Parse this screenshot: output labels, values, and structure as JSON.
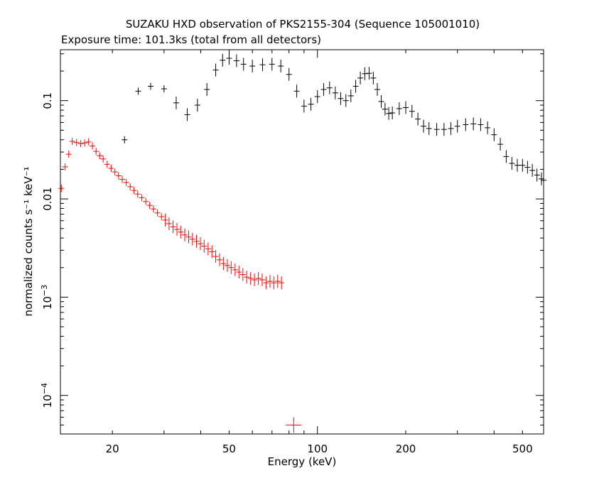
{
  "chart_data": {
    "type": "scatter",
    "title": "SUZAKU HXD observation of PKS2155-304 (Sequence 105001010)",
    "subtitle": "Exposure time: 101.3ks (total from all detectors)",
    "xlabel": "Energy (keV)",
    "ylabel": "normalized counts s⁻¹ keV⁻¹",
    "xscale": "log",
    "yscale": "log",
    "xlim": [
      13.3,
      590
    ],
    "ylim": [
      4.05e-05,
      0.33
    ],
    "grid": false,
    "x_ticks": [
      {
        "value": 20,
        "label": "20"
      },
      {
        "value": 50,
        "label": "50"
      },
      {
        "value": 100,
        "label": "100"
      },
      {
        "value": 200,
        "label": "200"
      },
      {
        "value": 500,
        "label": "500"
      }
    ],
    "y_ticks": [
      {
        "value": 0.0001,
        "base": "10",
        "exp": "−4"
      },
      {
        "value": 0.001,
        "base": "10",
        "exp": "−3"
      },
      {
        "value": 0.01,
        "label": "0.01"
      },
      {
        "value": 0.1,
        "label": "0.1"
      }
    ],
    "series": [
      {
        "color": "#ff0000",
        "points": [
          [
            13.4,
            0.0128
          ],
          [
            13.8,
            0.0212
          ],
          [
            14.2,
            0.0285
          ],
          [
            14.6,
            0.0385
          ],
          [
            15.1,
            0.0375
          ],
          [
            15.6,
            0.0365
          ],
          [
            16.1,
            0.0372
          ],
          [
            16.6,
            0.038
          ],
          [
            17.1,
            0.0345
          ],
          [
            17.6,
            0.0305
          ],
          [
            18.1,
            0.0275
          ],
          [
            18.6,
            0.0255
          ],
          [
            19.2,
            0.0225
          ],
          [
            19.8,
            0.0205
          ],
          [
            20.4,
            0.0188
          ],
          [
            21.0,
            0.0172
          ],
          [
            21.6,
            0.0158
          ],
          [
            22.3,
            0.0147
          ],
          [
            23.0,
            0.0133
          ],
          [
            23.7,
            0.0122
          ],
          [
            24.4,
            0.0112
          ],
          [
            25.2,
            0.0103
          ],
          [
            26.0,
            0.0094
          ],
          [
            26.8,
            0.0086
          ],
          [
            27.6,
            0.0079
          ],
          [
            28.5,
            0.0072
          ],
          [
            29.4,
            0.0066
          ],
          [
            30.3,
            0.0061
          ],
          [
            31.2,
            0.0056
          ],
          [
            32.2,
            0.0052
          ],
          [
            33.2,
            0.0049
          ],
          [
            34.2,
            0.0046
          ],
          [
            35.3,
            0.0043
          ],
          [
            36.4,
            0.0041
          ],
          [
            37.5,
            0.0039
          ],
          [
            38.7,
            0.0037
          ],
          [
            39.9,
            0.0035
          ],
          [
            41.1,
            0.0033
          ],
          [
            42.4,
            0.0031
          ],
          [
            43.7,
            0.0029
          ],
          [
            45.0,
            0.0026
          ],
          [
            46.4,
            0.0024
          ],
          [
            47.8,
            0.0022
          ],
          [
            49.3,
            0.0021
          ],
          [
            50.8,
            0.002
          ],
          [
            52.4,
            0.0019
          ],
          [
            54.0,
            0.0018
          ],
          [
            55.7,
            0.0017
          ],
          [
            57.4,
            0.0016
          ],
          [
            59.2,
            0.00155
          ],
          [
            61.0,
            0.0015
          ],
          [
            62.9,
            0.00155
          ],
          [
            64.8,
            0.0015
          ],
          [
            66.8,
            0.0014
          ],
          [
            68.9,
            0.00145
          ],
          [
            71.0,
            0.0014
          ],
          [
            73.2,
            0.00145
          ],
          [
            75.4,
            0.0014
          ],
          [
            83.0,
            5e-05
          ]
        ]
      },
      {
        "color": "#000000",
        "points": [
          [
            22.0,
            0.04
          ],
          [
            24.5,
            0.125
          ],
          [
            27.0,
            0.14
          ],
          [
            30.0,
            0.132
          ],
          [
            33.0,
            0.095
          ],
          [
            36.0,
            0.072
          ],
          [
            39.0,
            0.09
          ],
          [
            42.0,
            0.13
          ],
          [
            45.0,
            0.205
          ],
          [
            47.5,
            0.258
          ],
          [
            50.0,
            0.27
          ],
          [
            53.0,
            0.255
          ],
          [
            56.0,
            0.235
          ],
          [
            60.0,
            0.225
          ],
          [
            65.0,
            0.232
          ],
          [
            70.0,
            0.235
          ],
          [
            75.0,
            0.225
          ],
          [
            80.0,
            0.185
          ],
          [
            85.0,
            0.125
          ],
          [
            90.0,
            0.088
          ],
          [
            95.0,
            0.092
          ],
          [
            100.0,
            0.11
          ],
          [
            105.0,
            0.13
          ],
          [
            110.0,
            0.135
          ],
          [
            115.0,
            0.12
          ],
          [
            120.0,
            0.105
          ],
          [
            125.0,
            0.1
          ],
          [
            130.0,
            0.112
          ],
          [
            135.0,
            0.14
          ],
          [
            140.0,
            0.17
          ],
          [
            145.0,
            0.188
          ],
          [
            150.0,
            0.19
          ],
          [
            155.0,
            0.17
          ],
          [
            160.0,
            0.13
          ],
          [
            165.0,
            0.098
          ],
          [
            170.0,
            0.082
          ],
          [
            175.0,
            0.074
          ],
          [
            180.0,
            0.075
          ],
          [
            190.0,
            0.083
          ],
          [
            200.0,
            0.085
          ],
          [
            210.0,
            0.078
          ],
          [
            220.0,
            0.065
          ],
          [
            230.0,
            0.055
          ],
          [
            240.0,
            0.052
          ],
          [
            255.0,
            0.051
          ],
          [
            270.0,
            0.051
          ],
          [
            285.0,
            0.052
          ],
          [
            300.0,
            0.055
          ],
          [
            320.0,
            0.057
          ],
          [
            340.0,
            0.058
          ],
          [
            360.0,
            0.057
          ],
          [
            380.0,
            0.053
          ],
          [
            400.0,
            0.045
          ],
          [
            420.0,
            0.036
          ],
          [
            440.0,
            0.027
          ],
          [
            460.0,
            0.023
          ],
          [
            480.0,
            0.022
          ],
          [
            500.0,
            0.022
          ],
          [
            520.0,
            0.021
          ],
          [
            540.0,
            0.0195
          ],
          [
            560.0,
            0.0175
          ],
          [
            580.0,
            0.016
          ],
          [
            590.0,
            0.0155
          ]
        ]
      }
    ]
  }
}
